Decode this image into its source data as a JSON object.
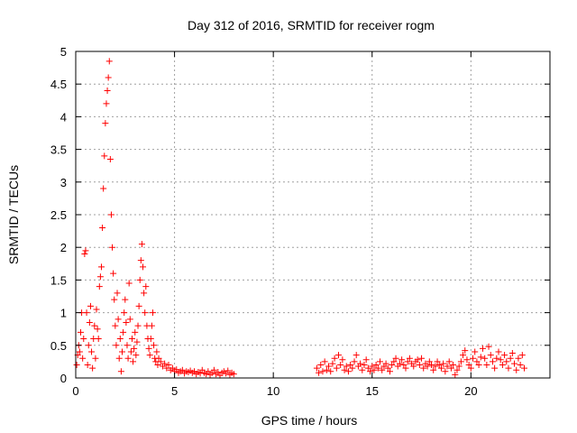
{
  "chart_data": {
    "type": "scatter",
    "title": "Day 312 of 2016, SRMTID for receiver rogm",
    "xlabel": "GPS time / hours",
    "ylabel": "SRMTID / TECUs",
    "xlim": [
      0,
      24
    ],
    "ylim": [
      0,
      5
    ],
    "grid": true,
    "marker": "+",
    "color": "#ff0000",
    "xticks": [
      {
        "value": 0,
        "label": "0"
      },
      {
        "value": 5,
        "label": "5"
      },
      {
        "value": 10,
        "label": "10"
      },
      {
        "value": 15,
        "label": "15"
      },
      {
        "value": 20,
        "label": "20"
      }
    ],
    "yticks": [
      {
        "value": 0,
        "label": "0"
      },
      {
        "value": 0.5,
        "label": "0.5"
      },
      {
        "value": 1,
        "label": "1"
      },
      {
        "value": 1.5,
        "label": "1.5"
      },
      {
        "value": 2,
        "label": "2"
      },
      {
        "value": 2.5,
        "label": "2.5"
      },
      {
        "value": 3,
        "label": "3"
      },
      {
        "value": 3.5,
        "label": "3.5"
      },
      {
        "value": 4,
        "label": "4"
      },
      {
        "value": 4.5,
        "label": "4.5"
      },
      {
        "value": 5,
        "label": "5"
      }
    ],
    "points": [
      [
        0.05,
        0.2
      ],
      [
        0.1,
        0.35
      ],
      [
        0.15,
        0.5
      ],
      [
        0.2,
        0.4
      ],
      [
        0.25,
        0.7
      ],
      [
        0.3,
        1.0
      ],
      [
        0.35,
        0.3
      ],
      [
        0.4,
        0.6
      ],
      [
        0.45,
        1.9
      ],
      [
        0.5,
        1.95
      ],
      [
        0.55,
        1.0
      ],
      [
        0.6,
        0.2
      ],
      [
        0.65,
        0.5
      ],
      [
        0.7,
        0.85
      ],
      [
        0.75,
        1.1
      ],
      [
        0.8,
        0.4
      ],
      [
        0.85,
        0.15
      ],
      [
        0.9,
        0.6
      ],
      [
        0.95,
        0.8
      ],
      [
        1.0,
        0.3
      ],
      [
        1.05,
        1.05
      ],
      [
        1.1,
        0.75
      ],
      [
        1.15,
        0.6
      ],
      [
        1.2,
        1.4
      ],
      [
        1.25,
        1.55
      ],
      [
        1.3,
        1.7
      ],
      [
        1.35,
        2.3
      ],
      [
        1.4,
        2.9
      ],
      [
        1.45,
        3.4
      ],
      [
        1.5,
        3.9
      ],
      [
        1.55,
        4.2
      ],
      [
        1.6,
        4.4
      ],
      [
        1.65,
        4.6
      ],
      [
        1.7,
        4.85
      ],
      [
        1.75,
        3.35
      ],
      [
        1.8,
        2.5
      ],
      [
        1.85,
        2.0
      ],
      [
        1.9,
        1.6
      ],
      [
        1.95,
        1.2
      ],
      [
        2.0,
        0.8
      ],
      [
        2.05,
        0.5
      ],
      [
        2.1,
        1.3
      ],
      [
        2.15,
        0.9
      ],
      [
        2.2,
        0.3
      ],
      [
        2.25,
        0.6
      ],
      [
        2.3,
        0.1
      ],
      [
        2.35,
        0.4
      ],
      [
        2.4,
        0.7
      ],
      [
        2.45,
        1.0
      ],
      [
        2.5,
        1.2
      ],
      [
        2.55,
        0.85
      ],
      [
        2.6,
        0.5
      ],
      [
        2.65,
        0.3
      ],
      [
        2.7,
        1.45
      ],
      [
        2.75,
        0.9
      ],
      [
        2.8,
        0.4
      ],
      [
        2.85,
        0.6
      ],
      [
        2.9,
        0.25
      ],
      [
        2.95,
        0.45
      ],
      [
        3.0,
        0.7
      ],
      [
        3.05,
        0.35
      ],
      [
        3.1,
        0.55
      ],
      [
        3.15,
        0.8
      ],
      [
        3.2,
        1.1
      ],
      [
        3.25,
        1.5
      ],
      [
        3.3,
        1.8
      ],
      [
        3.35,
        2.05
      ],
      [
        3.4,
        1.7
      ],
      [
        3.45,
        1.3
      ],
      [
        3.5,
        1.0
      ],
      [
        3.55,
        1.4
      ],
      [
        3.6,
        0.8
      ],
      [
        3.65,
        0.6
      ],
      [
        3.7,
        0.45
      ],
      [
        3.75,
        0.35
      ],
      [
        3.8,
        0.6
      ],
      [
        3.85,
        0.8
      ],
      [
        3.9,
        1.0
      ],
      [
        3.95,
        0.5
      ],
      [
        4.0,
        0.3
      ],
      [
        4.05,
        0.25
      ],
      [
        4.1,
        0.4
      ],
      [
        4.15,
        0.2
      ],
      [
        4.2,
        0.3
      ],
      [
        4.3,
        0.25
      ],
      [
        4.4,
        0.18
      ],
      [
        4.5,
        0.22
      ],
      [
        4.6,
        0.15
      ],
      [
        4.7,
        0.2
      ],
      [
        4.8,
        0.12
      ],
      [
        4.9,
        0.15
      ],
      [
        5.0,
        0.1
      ],
      [
        5.1,
        0.13
      ],
      [
        5.2,
        0.08
      ],
      [
        5.3,
        0.1
      ],
      [
        5.4,
        0.12
      ],
      [
        5.5,
        0.07
      ],
      [
        5.6,
        0.1
      ],
      [
        5.7,
        0.09
      ],
      [
        5.8,
        0.11
      ],
      [
        5.9,
        0.08
      ],
      [
        6.0,
        0.1
      ],
      [
        6.1,
        0.06
      ],
      [
        6.2,
        0.09
      ],
      [
        6.3,
        0.07
      ],
      [
        6.4,
        0.12
      ],
      [
        6.5,
        0.08
      ],
      [
        6.6,
        0.06
      ],
      [
        6.7,
        0.1
      ],
      [
        6.8,
        0.05
      ],
      [
        6.9,
        0.08
      ],
      [
        7.0,
        0.12
      ],
      [
        7.1,
        0.06
      ],
      [
        7.2,
        0.09
      ],
      [
        7.3,
        0.04
      ],
      [
        7.4,
        0.08
      ],
      [
        7.5,
        0.1
      ],
      [
        7.6,
        0.07
      ],
      [
        7.7,
        0.11
      ],
      [
        7.8,
        0.05
      ],
      [
        7.9,
        0.08
      ],
      [
        8.0,
        0.06
      ],
      [
        12.2,
        0.15
      ],
      [
        12.3,
        0.08
      ],
      [
        12.4,
        0.2
      ],
      [
        12.5,
        0.1
      ],
      [
        12.6,
        0.25
      ],
      [
        12.7,
        0.12
      ],
      [
        12.8,
        0.18
      ],
      [
        12.9,
        0.1
      ],
      [
        13.0,
        0.22
      ],
      [
        13.1,
        0.3
      ],
      [
        13.2,
        0.15
      ],
      [
        13.3,
        0.35
      ],
      [
        13.4,
        0.2
      ],
      [
        13.5,
        0.28
      ],
      [
        13.6,
        0.12
      ],
      [
        13.7,
        0.18
      ],
      [
        13.8,
        0.1
      ],
      [
        13.9,
        0.2
      ],
      [
        14.0,
        0.15
      ],
      [
        14.1,
        0.25
      ],
      [
        14.2,
        0.35
      ],
      [
        14.3,
        0.18
      ],
      [
        14.4,
        0.22
      ],
      [
        14.5,
        0.12
      ],
      [
        14.6,
        0.2
      ],
      [
        14.7,
        0.28
      ],
      [
        14.8,
        0.15
      ],
      [
        14.9,
        0.1
      ],
      [
        15.0,
        0.18
      ],
      [
        15.1,
        0.12
      ],
      [
        15.2,
        0.2
      ],
      [
        15.3,
        0.15
      ],
      [
        15.4,
        0.25
      ],
      [
        15.5,
        0.12
      ],
      [
        15.6,
        0.18
      ],
      [
        15.7,
        0.22
      ],
      [
        15.8,
        0.15
      ],
      [
        15.9,
        0.1
      ],
      [
        16.0,
        0.2
      ],
      [
        16.1,
        0.25
      ],
      [
        16.2,
        0.3
      ],
      [
        16.3,
        0.18
      ],
      [
        16.4,
        0.22
      ],
      [
        16.5,
        0.28
      ],
      [
        16.6,
        0.2
      ],
      [
        16.7,
        0.15
      ],
      [
        16.8,
        0.25
      ],
      [
        16.9,
        0.3
      ],
      [
        17.0,
        0.22
      ],
      [
        17.1,
        0.18
      ],
      [
        17.2,
        0.25
      ],
      [
        17.3,
        0.28
      ],
      [
        17.4,
        0.2
      ],
      [
        17.5,
        0.3
      ],
      [
        17.6,
        0.15
      ],
      [
        17.7,
        0.22
      ],
      [
        17.8,
        0.18
      ],
      [
        17.9,
        0.25
      ],
      [
        18.0,
        0.2
      ],
      [
        18.1,
        0.12
      ],
      [
        18.2,
        0.18
      ],
      [
        18.3,
        0.25
      ],
      [
        18.4,
        0.2
      ],
      [
        18.5,
        0.15
      ],
      [
        18.6,
        0.22
      ],
      [
        18.7,
        0.1
      ],
      [
        18.8,
        0.18
      ],
      [
        18.9,
        0.25
      ],
      [
        19.0,
        0.15
      ],
      [
        19.1,
        0.2
      ],
      [
        19.2,
        0.05
      ],
      [
        19.3,
        0.12
      ],
      [
        19.4,
        0.18
      ],
      [
        19.5,
        0.25
      ],
      [
        19.6,
        0.35
      ],
      [
        19.7,
        0.42
      ],
      [
        19.8,
        0.28
      ],
      [
        19.9,
        0.2
      ],
      [
        20.0,
        0.15
      ],
      [
        20.1,
        0.3
      ],
      [
        20.2,
        0.4
      ],
      [
        20.3,
        0.25
      ],
      [
        20.4,
        0.2
      ],
      [
        20.5,
        0.32
      ],
      [
        20.6,
        0.45
      ],
      [
        20.7,
        0.3
      ],
      [
        20.8,
        0.2
      ],
      [
        20.9,
        0.48
      ],
      [
        21.0,
        0.35
      ],
      [
        21.1,
        0.25
      ],
      [
        21.2,
        0.15
      ],
      [
        21.3,
        0.3
      ],
      [
        21.4,
        0.4
      ],
      [
        21.5,
        0.28
      ],
      [
        21.6,
        0.2
      ],
      [
        21.7,
        0.35
      ],
      [
        21.8,
        0.25
      ],
      [
        21.9,
        0.15
      ],
      [
        22.0,
        0.3
      ],
      [
        22.1,
        0.38
      ],
      [
        22.2,
        0.22
      ],
      [
        22.3,
        0.12
      ],
      [
        22.4,
        0.3
      ],
      [
        22.5,
        0.2
      ],
      [
        22.6,
        0.35
      ],
      [
        22.7,
        0.15
      ]
    ]
  }
}
